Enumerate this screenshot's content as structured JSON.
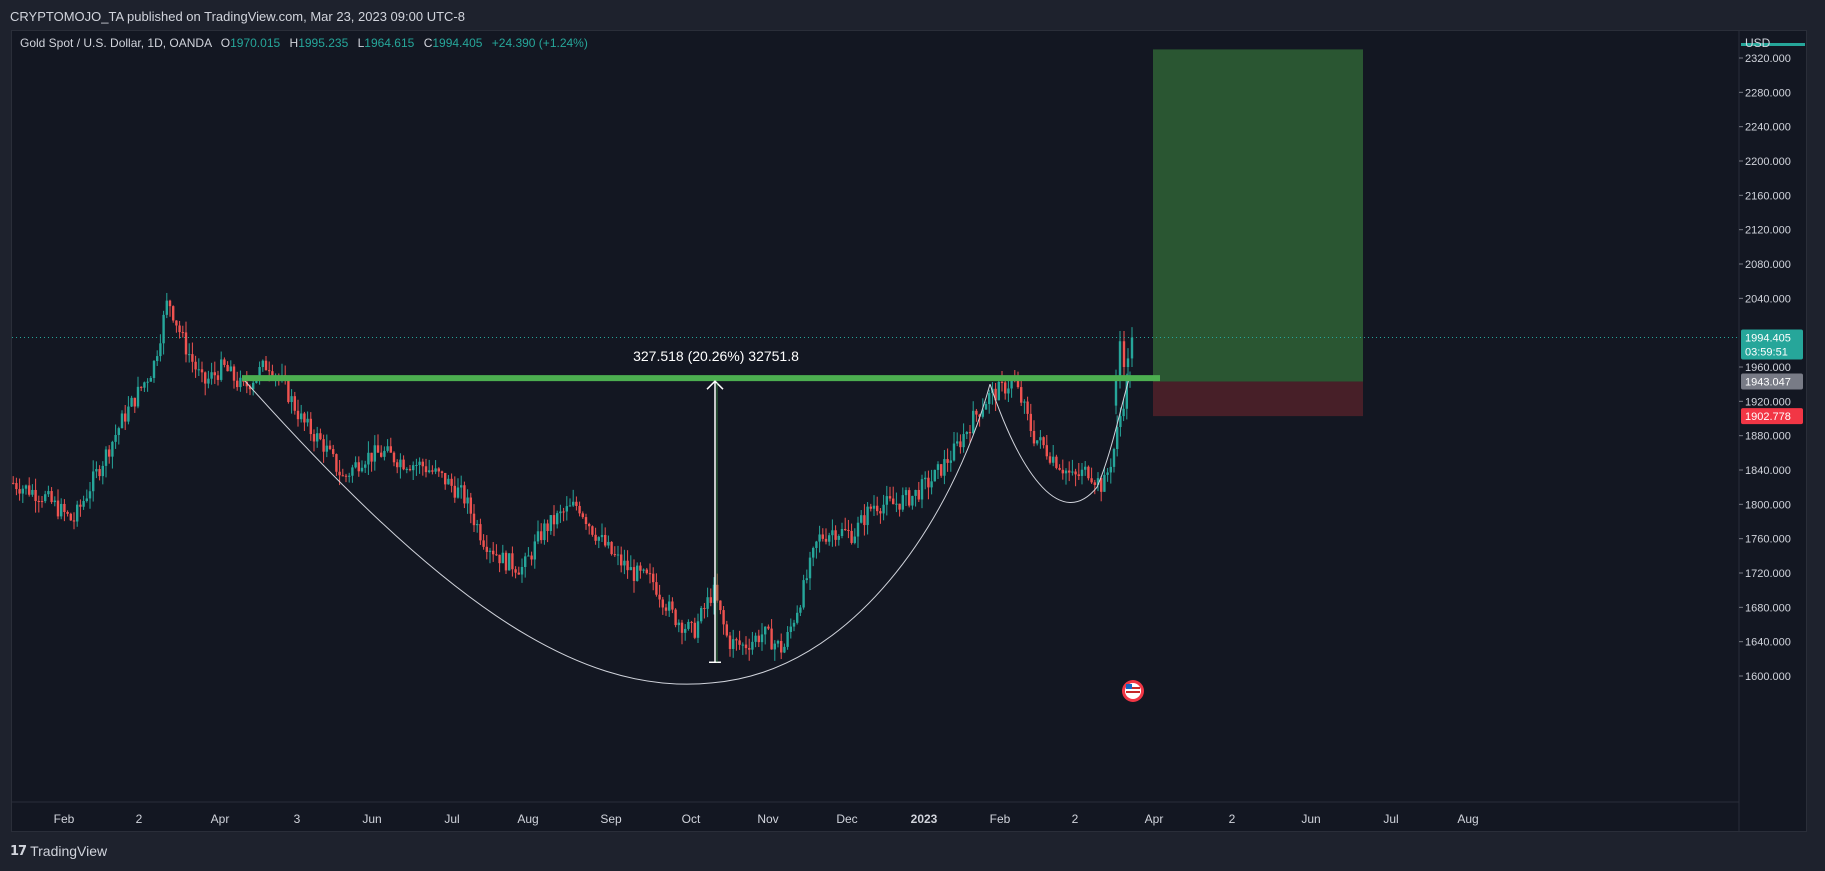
{
  "header": {
    "published_line": "CRYPTOMOJO_TA published on TradingView.com, Mar 23, 2023 09:00 UTC-8"
  },
  "legend": {
    "symbol": "Gold Spot / U.S. Dollar, 1D, OANDA",
    "o_label": "O",
    "o_value": "1970.015",
    "h_label": "H",
    "h_value": "1995.235",
    "l_label": "L",
    "l_value": "1964.615",
    "c_label": "C",
    "c_value": "1994.405",
    "change": "+24.390 (+1.24%)"
  },
  "price_axis": {
    "currency": "USD",
    "ticks": [
      "2320.000",
      "2280.000",
      "2240.000",
      "2200.000",
      "2160.000",
      "2120.000",
      "2080.000",
      "2040.000",
      "1960.000",
      "1920.000",
      "1880.000",
      "1840.000",
      "1800.000",
      "1760.000",
      "1720.000",
      "1680.000",
      "1640.000",
      "1600.000"
    ],
    "last_price": "1994.405",
    "countdown": "03:59:51",
    "entry_label": "1943.047",
    "stop_label": "1902.778"
  },
  "time_axis": {
    "ticks": [
      "Feb",
      "2",
      "Apr",
      "3",
      "Jun",
      "Jul",
      "Aug",
      "Sep",
      "Oct",
      "Nov",
      "Dec",
      "2023",
      "Feb",
      "2",
      "Apr",
      "2",
      "Jun",
      "Jul",
      "Aug"
    ]
  },
  "measure": {
    "label": "327.518 (20.26%) 32751.8"
  },
  "footer": {
    "brand": "TradingView"
  },
  "colors": {
    "up": "#26a69a",
    "down": "#ef5350",
    "neckline": "#4caf50",
    "target_zone": "#2b5a34",
    "stop_zone": "#4a2029",
    "last_price_bg": "#26a69a",
    "entry_bg": "#787b86",
    "stop_bg": "#f23645"
  },
  "chart_data": {
    "type": "candlestick",
    "title": "Gold Spot / U.S. Dollar, 1D, OANDA",
    "ylabel": "USD",
    "ylim": [
      1590,
      2340
    ],
    "x_ticks": [
      "Feb",
      "2",
      "Apr",
      "3",
      "Jun",
      "Jul",
      "Aug",
      "Sep",
      "Oct",
      "Nov",
      "Dec",
      "2023",
      "Feb",
      "2",
      "Apr",
      "2",
      "Jun",
      "Jul",
      "Aug"
    ],
    "price_path": {
      "description_free": true,
      "anchors": [
        [
          0,
          1825
        ],
        [
          30,
          1810
        ],
        [
          60,
          1780
        ],
        [
          85,
          1840
        ],
        [
          110,
          1900
        ],
        [
          140,
          1960
        ],
        [
          155,
          2040
        ],
        [
          170,
          1990
        ],
        [
          190,
          1940
        ],
        [
          210,
          1960
        ],
        [
          230,
          1935
        ],
        [
          255,
          1965
        ],
        [
          270,
          1940
        ],
        [
          290,
          1895
        ],
        [
          310,
          1870
        ],
        [
          330,
          1830
        ],
        [
          350,
          1855
        ],
        [
          370,
          1860
        ],
        [
          390,
          1850
        ],
        [
          410,
          1845
        ],
        [
          430,
          1830
        ],
        [
          450,
          1810
        ],
        [
          470,
          1760
        ],
        [
          490,
          1735
        ],
        [
          510,
          1725
        ],
        [
          530,
          1770
        ],
        [
          550,
          1790
        ],
        [
          565,
          1800
        ],
        [
          580,
          1770
        ],
        [
          600,
          1740
        ],
        [
          620,
          1720
        ],
        [
          640,
          1710
        ],
        [
          660,
          1670
        ],
        [
          680,
          1650
        ],
        [
          700,
          1700
        ],
        [
          715,
          1640
        ],
        [
          730,
          1635
        ],
        [
          750,
          1650
        ],
        [
          770,
          1630
        ],
        [
          790,
          1700
        ],
        [
          805,
          1760
        ],
        [
          820,
          1770
        ],
        [
          840,
          1765
        ],
        [
          860,
          1800
        ],
        [
          880,
          1800
        ],
        [
          900,
          1810
        ],
        [
          920,
          1830
        ],
        [
          940,
          1860
        ],
        [
          960,
          1900
        ],
        [
          975,
          1925
        ],
        [
          990,
          1935
        ],
        [
          1000,
          1945
        ],
        [
          1010,
          1915
        ],
        [
          1020,
          1880
        ],
        [
          1040,
          1855
        ],
        [
          1060,
          1830
        ],
        [
          1075,
          1840
        ],
        [
          1090,
          1820
        ],
        [
          1100,
          1860
        ],
        [
          1110,
          1920
        ],
        [
          1120,
          1970
        ],
        [
          1130,
          1994.405
        ]
      ]
    },
    "last": {
      "open": 1970.015,
      "high": 1995.235,
      "low": 1964.615,
      "close": 1994.405,
      "change": 24.39,
      "change_pct": 1.24
    },
    "neckline_price": 1947,
    "measure": {
      "from": 1616,
      "to": 1943.5,
      "value": 327.518,
      "pct": 20.26,
      "ticks": 32751.8
    },
    "position": {
      "entry": 1943.047,
      "stop": 1902.778,
      "target": 2330
    }
  }
}
